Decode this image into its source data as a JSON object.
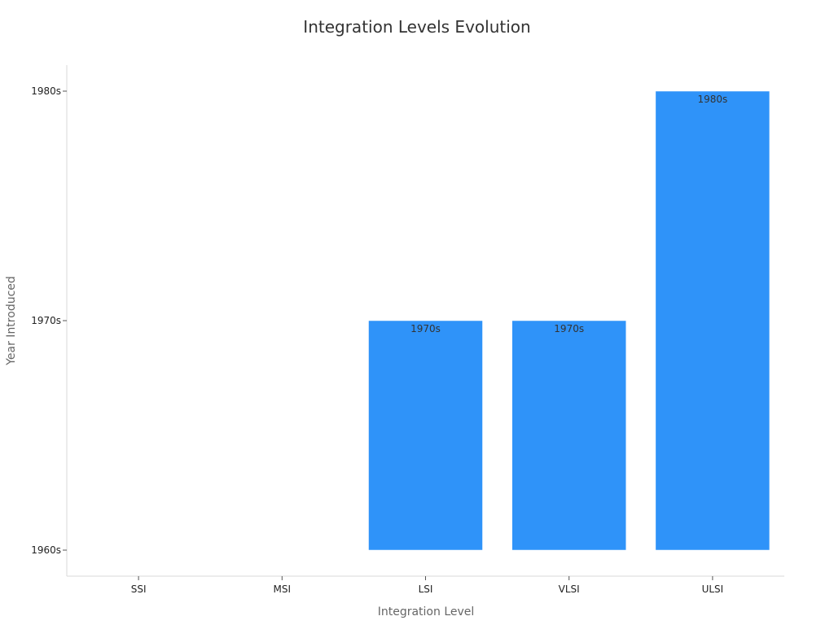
{
  "chart_data": {
    "type": "bar",
    "title": "Integration Levels Evolution",
    "xlabel": "Integration Level",
    "ylabel": "Year Introduced",
    "categories": [
      "SSI",
      "MSI",
      "LSI",
      "VLSI",
      "ULSI"
    ],
    "y_categories": [
      "1960s",
      "1970s",
      "1980s"
    ],
    "values": [
      "1960s",
      "1960s",
      "1970s",
      "1970s",
      "1980s"
    ],
    "data_labels": [
      "",
      "",
      "1970s",
      "1970s",
      "1980s"
    ],
    "bar_color": "#2f93f9",
    "grid": false,
    "legend": "none"
  }
}
